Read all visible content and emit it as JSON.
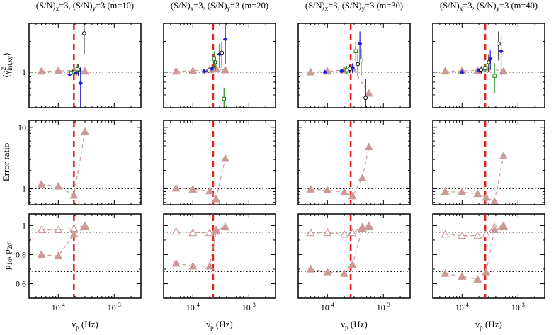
{
  "chart_data": {
    "type": "scatter",
    "layout": "3 rows x 4 columns of panels",
    "columns": [
      {
        "title": "(S/N)x=3, (S/N)y=3 (m=10)",
        "title_parts": {
          "a": "(S/N)",
          "b": "x",
          "c": "=3, (S/N)",
          "d": "y",
          "e": "=3 (m=10)"
        },
        "red_line_x": 0.00019
      },
      {
        "title": "(S/N)x=3, (S/N)y=3 (m=20)",
        "title_parts": {
          "a": "(S/N)",
          "b": "x",
          "c": "=3, (S/N)",
          "d": "y",
          "e": "=3 (m=20)"
        },
        "red_line_x": 0.00023
      },
      {
        "title": "(S/N)x=3, (S/N)y=3 (m=30)",
        "title_parts": {
          "a": "(S/N)",
          "b": "x",
          "c": "=3, (S/N)",
          "d": "y",
          "e": "=3 (m=30)"
        },
        "red_line_x": 0.00026
      },
      {
        "title": "(S/N)x=3, (S/N)y=3 (m=40)",
        "title_parts": {
          "a": "(S/N)",
          "b": "x",
          "c": "=3, (S/N)",
          "d": "y",
          "e": "=3 (m=40)"
        },
        "red_line_x": 0.00026
      }
    ],
    "x_axis": {
      "label_main": "ν",
      "label_sub": "p",
      "label_unit": " (Hz)",
      "scale": "log",
      "xlim": [
        3e-05,
        0.003
      ],
      "ticks": [
        {
          "value": 0.0001,
          "base": "10",
          "exp": "-4"
        },
        {
          "value": 0.001,
          "base": "10",
          "exp": "-3"
        }
      ]
    },
    "rows": [
      {
        "name": "ratio",
        "ylabel": "⟨γ̂²int,xy⟩",
        "ylabel_parts": {
          "open": "⟨",
          "sym": "γ̂",
          "sup": "2",
          "sub": "int,xy",
          "close": "⟩"
        },
        "scale": "log",
        "ylim": [
          0.45,
          3.0
        ],
        "tick_labels": [
          {
            "value": 1,
            "text": "1"
          }
        ],
        "minor_ticks": [
          0.5,
          0.6,
          0.7,
          0.8,
          0.9,
          2,
          3
        ],
        "reference_lines": [
          1
        ],
        "series": [
          {
            "panel": 0,
            "name": "mean",
            "color": "#c99a98",
            "marker": "filled-triangle",
            "x": [
              5e-05,
              0.0001,
              0.00019,
              0.0003
            ],
            "y": [
              1.02,
              1.03,
              1.04,
              1.02
            ]
          },
          {
            "panel": 0,
            "name": "blue",
            "color": "#1c23d6",
            "marker": "diamond",
            "x": [
              0.00016,
              0.00021,
              0.00025
            ],
            "y": [
              0.95,
              0.98,
              0.78
            ],
            "err": [
              0.03,
              0.08,
              0.35
            ]
          },
          {
            "panel": 0,
            "name": "black",
            "color": "#000000",
            "marker": "open-circle",
            "x": [
              0.00018,
              0.00023,
              0.00029
            ],
            "y": [
              1.0,
              1.06,
              2.4
            ],
            "err": [
              0.05,
              0.15,
              0.9
            ]
          },
          {
            "panel": 0,
            "name": "green",
            "color": "#1a8a1a",
            "marker": "open-square",
            "x": [
              0.00017,
              0.00022
            ],
            "y": [
              0.99,
              1.07
            ],
            "err": [
              0.04,
              0.12
            ]
          },
          {
            "panel": 1,
            "name": "mean",
            "color": "#c99a98",
            "marker": "filled-triangle",
            "x": [
              5e-05,
              0.0001,
              0.0002,
              0.00026,
              0.00038
            ],
            "y": [
              1.02,
              1.03,
              1.06,
              1.08,
              1.05
            ]
          },
          {
            "panel": 1,
            "name": "blue",
            "color": "#1c23d6",
            "marker": "diamond",
            "x": [
              0.00016,
              0.00022,
              0.0003,
              0.00038
            ],
            "y": [
              1.02,
              1.08,
              1.5,
              2.1
            ],
            "err": [
              0.03,
              0.1,
              0.4,
              0.9
            ]
          },
          {
            "panel": 1,
            "name": "black",
            "color": "#000000",
            "marker": "open-circle",
            "x": [
              0.00019,
              0.00025,
              0.00033
            ],
            "y": [
              1.04,
              1.25,
              1.55
            ],
            "err": [
              0.05,
              0.2,
              0.45
            ]
          },
          {
            "panel": 1,
            "name": "green",
            "color": "#1a8a1a",
            "marker": "open-square",
            "x": [
              0.00024,
              0.00036
            ],
            "y": [
              1.35,
              0.55
            ],
            "err": [
              0.25,
              0.15
            ]
          },
          {
            "panel": 2,
            "name": "mean",
            "color": "#c99a98",
            "marker": "filled-triangle",
            "x": [
              5e-05,
              0.0001,
              0.0002,
              0.00028,
              0.00055
            ],
            "y": [
              1.0,
              1.02,
              1.05,
              1.1,
              0.62
            ]
          },
          {
            "panel": 2,
            "name": "blue",
            "color": "#1c23d6",
            "marker": "diamond",
            "x": [
              9e-05,
              0.00018,
              0.00028,
              0.00038
            ],
            "y": [
              1.0,
              1.03,
              1.1,
              1.9
            ],
            "err": [
              0.03,
              0.05,
              0.12,
              0.6
            ]
          },
          {
            "panel": 2,
            "name": "black",
            "color": "#000000",
            "marker": "open-circle",
            "x": [
              0.00025,
              0.00035,
              0.00048
            ],
            "y": [
              1.08,
              1.2,
              0.56
            ],
            "err": [
              0.1,
              0.3,
              0.3
            ]
          },
          {
            "panel": 2,
            "name": "green",
            "color": "#1a8a1a",
            "marker": "open-square",
            "x": [
              0.00022,
              0.00032,
              0.0004
            ],
            "y": [
              1.05,
              1.6,
              1.3
            ],
            "err": [
              0.1,
              0.35,
              0.4
            ]
          },
          {
            "panel": 3,
            "name": "mean",
            "color": "#c99a98",
            "marker": "filled-triangle",
            "x": [
              5e-05,
              0.0001,
              0.00019,
              0.00027,
              0.00055
            ],
            "y": [
              1.02,
              1.03,
              1.04,
              1.1,
              1.02
            ]
          },
          {
            "panel": 3,
            "name": "blue",
            "color": "#1c23d6",
            "marker": "diamond",
            "x": [
              0.0001,
              0.0002,
              0.00032,
              0.0005
            ],
            "y": [
              1.0,
              1.04,
              1.35,
              1.6
            ],
            "err": [
              0.03,
              0.05,
              0.3,
              0.7
            ]
          },
          {
            "panel": 3,
            "name": "black",
            "color": "#000000",
            "marker": "open-circle",
            "x": [
              0.00022,
              0.0003,
              0.00045
            ],
            "y": [
              1.06,
              1.25,
              1.9
            ],
            "err": [
              0.08,
              0.25,
              0.6
            ]
          },
          {
            "panel": 3,
            "name": "green",
            "color": "#1a8a1a",
            "marker": "open-square",
            "x": [
              0.00026,
              0.00038
            ],
            "y": [
              1.1,
              0.92
            ],
            "err": [
              0.1,
              0.3
            ]
          }
        ]
      },
      {
        "name": "error_ratio",
        "ylabel": "Error ratio",
        "scale": "log",
        "ylim": [
          0.55,
          13
        ],
        "tick_labels": [
          {
            "value": 1,
            "text": "1"
          },
          {
            "value": 10,
            "text": "10"
          }
        ],
        "minor_ticks": [
          0.6,
          0.7,
          0.8,
          0.9,
          2,
          3,
          4,
          5,
          6,
          7,
          8,
          9
        ],
        "reference_lines": [
          1
        ],
        "series": [
          {
            "panel": 0,
            "name": "error ratio",
            "color": "#c99a98",
            "marker": "filled-triangle",
            "x": [
              5e-05,
              0.0001,
              0.00019,
              0.0003
            ],
            "y": [
              1.18,
              1.1,
              0.78,
              8.5
            ]
          },
          {
            "panel": 1,
            "name": "error ratio",
            "color": "#c99a98",
            "marker": "filled-triangle",
            "x": [
              5e-05,
              0.0001,
              0.0002,
              0.00026,
              0.00038
            ],
            "y": [
              1.02,
              0.98,
              0.92,
              0.68,
              3.1
            ]
          },
          {
            "panel": 2,
            "name": "error ratio",
            "color": "#c99a98",
            "marker": "filled-triangle",
            "x": [
              5e-05,
              0.0001,
              0.0002,
              0.00028,
              0.00042,
              0.00055
            ],
            "y": [
              0.98,
              0.95,
              0.88,
              0.76,
              1.5,
              4.8
            ]
          },
          {
            "panel": 3,
            "name": "error ratio",
            "color": "#c99a98",
            "marker": "filled-triangle",
            "x": [
              5e-05,
              0.0001,
              0.00019,
              0.00027,
              0.00038,
              0.00055
            ],
            "y": [
              0.9,
              0.88,
              0.83,
              0.72,
              0.62,
              3.4
            ]
          }
        ]
      },
      {
        "name": "probability",
        "ylabel": "p1σ̂, p2σ̂",
        "ylabel_parts": {
          "p": "p",
          "s1": "1σ̂",
          "sep": ", p",
          "s2": "2σ̂"
        },
        "scale": "linear",
        "ylim": [
          0.5,
          1.08
        ],
        "tick_labels": [
          {
            "value": 0.6,
            "text": "0.6"
          },
          {
            "value": 0.8,
            "text": "0.8"
          },
          {
            "value": 1,
            "text": "1"
          }
        ],
        "minor_ticks": [
          0.5,
          0.7,
          0.9
        ],
        "reference_lines": [
          0.954,
          0.683
        ],
        "series": [
          {
            "panel": 0,
            "name": "p2σ",
            "color": "#c99a98",
            "marker": "open-triangle",
            "x": [
              5e-05,
              0.0001,
              0.00019,
              0.0003
            ],
            "y": [
              0.97,
              0.97,
              0.98,
              1.0
            ]
          },
          {
            "panel": 0,
            "name": "p1σ",
            "color": "#c99a98",
            "marker": "filled-triangle",
            "x": [
              5e-05,
              0.0001,
              0.00019,
              0.0003
            ],
            "y": [
              0.8,
              0.79,
              0.94,
              0.99
            ]
          },
          {
            "panel": 1,
            "name": "p2σ",
            "color": "#c99a98",
            "marker": "open-triangle",
            "x": [
              5e-05,
              0.0001,
              0.0002,
              0.00026,
              0.00038
            ],
            "y": [
              0.96,
              0.95,
              0.95,
              0.97,
              0.99
            ]
          },
          {
            "panel": 1,
            "name": "p1σ",
            "color": "#c99a98",
            "marker": "filled-triangle",
            "x": [
              5e-05,
              0.0001,
              0.0002,
              0.00026,
              0.00038
            ],
            "y": [
              0.74,
              0.72,
              0.72,
              0.96,
              0.99
            ]
          },
          {
            "panel": 2,
            "name": "p2σ",
            "color": "#c99a98",
            "marker": "open-triangle",
            "x": [
              5e-05,
              0.0001,
              0.0002,
              0.00028,
              0.00042,
              0.00055
            ],
            "y": [
              0.95,
              0.95,
              0.94,
              0.95,
              0.99,
              1.0
            ]
          },
          {
            "panel": 2,
            "name": "p1σ",
            "color": "#c99a98",
            "marker": "filled-triangle",
            "x": [
              5e-05,
              0.0001,
              0.0002,
              0.00028,
              0.00042,
              0.00055
            ],
            "y": [
              0.7,
              0.68,
              0.67,
              0.73,
              0.98,
              0.99
            ]
          },
          {
            "panel": 3,
            "name": "p2σ",
            "color": "#c99a98",
            "marker": "open-triangle",
            "x": [
              5e-05,
              0.0001,
              0.00019,
              0.00027,
              0.00038,
              0.00055
            ],
            "y": [
              0.94,
              0.93,
              0.93,
              0.94,
              0.99,
              1.0
            ]
          },
          {
            "panel": 3,
            "name": "p1σ",
            "color": "#c99a98",
            "marker": "filled-triangle",
            "x": [
              5e-05,
              0.0001,
              0.00019,
              0.00027,
              0.00038,
              0.00055
            ],
            "y": [
              0.67,
              0.65,
              0.63,
              0.68,
              0.97,
              0.99
            ]
          }
        ]
      }
    ]
  }
}
